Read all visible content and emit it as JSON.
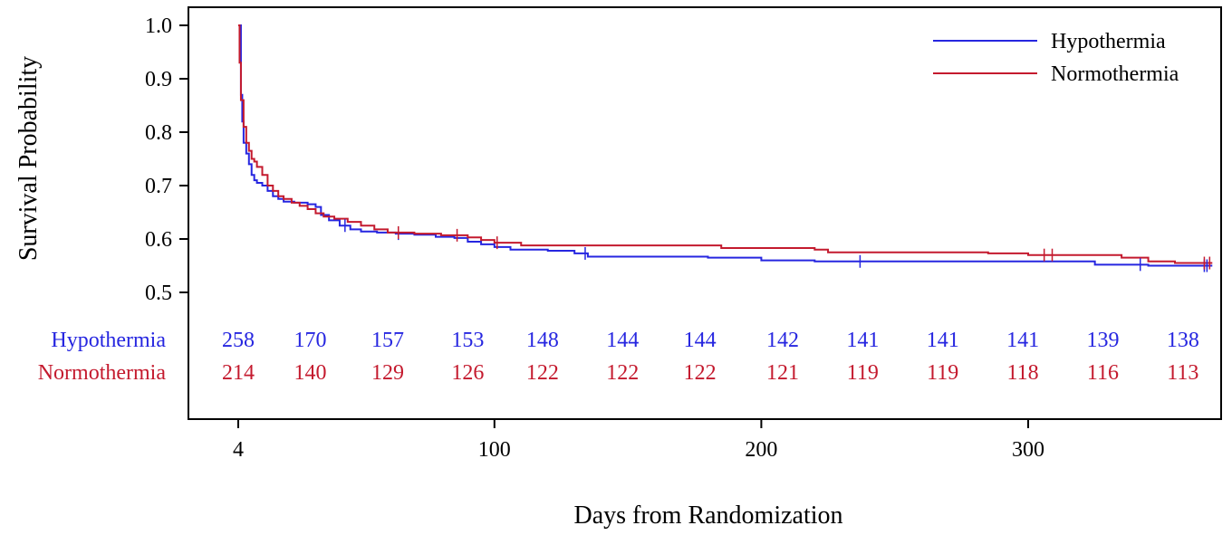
{
  "chart_data": {
    "type": "line",
    "step": true,
    "xlabel": "Days from Randomization",
    "ylabel": "Survival Probability",
    "xlim": [
      0,
      369
    ],
    "ylim": [
      0.5,
      1.0
    ],
    "x_ticks": [
      {
        "value": 4,
        "label": "4"
      },
      {
        "value": 100,
        "label": "100"
      },
      {
        "value": 200,
        "label": "200"
      },
      {
        "value": 300,
        "label": "300"
      }
    ],
    "y_ticks": [
      {
        "value": 1.0,
        "label": "1.0"
      },
      {
        "value": 0.9,
        "label": "0.9"
      },
      {
        "value": 0.8,
        "label": "0.8"
      },
      {
        "value": 0.7,
        "label": "0.7"
      },
      {
        "value": 0.6,
        "label": "0.6"
      },
      {
        "value": 0.5,
        "label": "0.5"
      }
    ],
    "legend_position": "top-right",
    "series": [
      {
        "name": "Hypothermia",
        "color": "#2626e0",
        "points": [
          [
            4,
            1.0
          ],
          [
            5,
            0.87
          ],
          [
            5.5,
            0.82
          ],
          [
            6,
            0.78
          ],
          [
            7,
            0.76
          ],
          [
            8,
            0.74
          ],
          [
            9,
            0.72
          ],
          [
            10,
            0.71
          ],
          [
            11,
            0.705
          ],
          [
            13,
            0.7
          ],
          [
            15,
            0.69
          ],
          [
            17,
            0.68
          ],
          [
            19,
            0.675
          ],
          [
            21,
            0.67
          ],
          [
            25,
            0.668
          ],
          [
            30,
            0.665
          ],
          [
            33,
            0.66
          ],
          [
            35,
            0.645
          ],
          [
            38,
            0.635
          ],
          [
            42,
            0.625
          ],
          [
            46,
            0.618
          ],
          [
            50,
            0.614
          ],
          [
            56,
            0.612
          ],
          [
            63,
            0.61
          ],
          [
            70,
            0.608
          ],
          [
            78,
            0.604
          ],
          [
            85,
            0.602
          ],
          [
            90,
            0.595
          ],
          [
            95,
            0.59
          ],
          [
            100,
            0.585
          ],
          [
            106,
            0.58
          ],
          [
            120,
            0.578
          ],
          [
            130,
            0.573
          ],
          [
            135,
            0.567
          ],
          [
            150,
            0.567
          ],
          [
            165,
            0.567
          ],
          [
            180,
            0.565
          ],
          [
            200,
            0.56
          ],
          [
            220,
            0.558
          ],
          [
            250,
            0.558
          ],
          [
            280,
            0.558
          ],
          [
            305,
            0.558
          ],
          [
            320,
            0.558
          ],
          [
            325,
            0.552
          ],
          [
            345,
            0.55
          ],
          [
            369,
            0.55
          ]
        ],
        "censor_x": [
          44,
          64,
          134,
          237,
          342,
          366,
          367
        ]
      },
      {
        "name": "Normothermia",
        "color": "#c41a2e",
        "points": [
          [
            4,
            1.0
          ],
          [
            4.5,
            0.93
          ],
          [
            5,
            0.86
          ],
          [
            6,
            0.81
          ],
          [
            7,
            0.78
          ],
          [
            8,
            0.765
          ],
          [
            9,
            0.75
          ],
          [
            10,
            0.745
          ],
          [
            11,
            0.735
          ],
          [
            13,
            0.72
          ],
          [
            15,
            0.7
          ],
          [
            17,
            0.69
          ],
          [
            19,
            0.68
          ],
          [
            21,
            0.675
          ],
          [
            24,
            0.668
          ],
          [
            27,
            0.662
          ],
          [
            30,
            0.656
          ],
          [
            33,
            0.648
          ],
          [
            36,
            0.642
          ],
          [
            40,
            0.638
          ],
          [
            45,
            0.632
          ],
          [
            50,
            0.625
          ],
          [
            55,
            0.618
          ],
          [
            60,
            0.612
          ],
          [
            70,
            0.61
          ],
          [
            80,
            0.607
          ],
          [
            90,
            0.603
          ],
          [
            95,
            0.598
          ],
          [
            100,
            0.593
          ],
          [
            110,
            0.588
          ],
          [
            120,
            0.588
          ],
          [
            150,
            0.588
          ],
          [
            180,
            0.588
          ],
          [
            185,
            0.583
          ],
          [
            200,
            0.583
          ],
          [
            220,
            0.58
          ],
          [
            225,
            0.575
          ],
          [
            240,
            0.575
          ],
          [
            260,
            0.575
          ],
          [
            285,
            0.573
          ],
          [
            300,
            0.57
          ],
          [
            310,
            0.57
          ],
          [
            320,
            0.57
          ],
          [
            335,
            0.565
          ],
          [
            345,
            0.558
          ],
          [
            355,
            0.555
          ],
          [
            369,
            0.555
          ]
        ],
        "censor_x": [
          64,
          86,
          101,
          306,
          309,
          366,
          368
        ]
      }
    ]
  },
  "risk_table": {
    "x_positions": [
      4,
      31,
      60,
      90,
      118,
      148,
      177,
      208,
      238,
      268,
      298,
      328,
      358
    ],
    "rows": [
      {
        "name": "Hypothermia",
        "color": "#2626e0",
        "counts": [
          "258",
          "170",
          "157",
          "153",
          "148",
          "144",
          "144",
          "142",
          "141",
          "141",
          "141",
          "139",
          "138"
        ]
      },
      {
        "name": "Normothermia",
        "color": "#c41a2e",
        "counts": [
          "214",
          "140",
          "129",
          "126",
          "122",
          "122",
          "122",
          "121",
          "119",
          "119",
          "118",
          "116",
          "113"
        ]
      }
    ]
  }
}
